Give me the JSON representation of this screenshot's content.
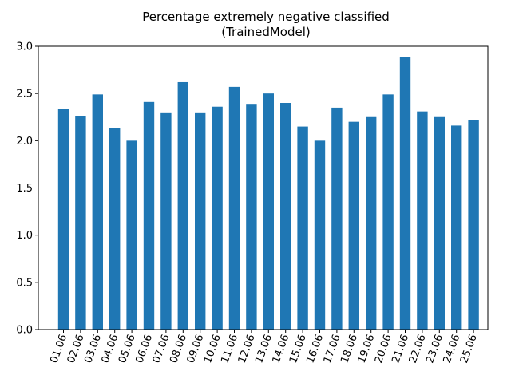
{
  "chart_data": {
    "type": "bar",
    "title": [
      "Percentage extremely negative classified",
      "(TrainedModel)"
    ],
    "xlabel": "",
    "ylabel": "",
    "ylim": [
      0,
      3.0
    ],
    "yticks": [
      "0.0",
      "0.5",
      "1.0",
      "1.5",
      "2.0",
      "2.5",
      "3.0"
    ],
    "categories": [
      "01.06",
      "02.06",
      "03.06",
      "04.06",
      "05.06",
      "06.06",
      "07.06",
      "08.06",
      "09.06",
      "10.06",
      "11.06",
      "12.06",
      "13.06",
      "14.06",
      "15.06",
      "16.06",
      "17.06",
      "18.06",
      "19.06",
      "20.06",
      "21.06",
      "22.06",
      "23.06",
      "24.06",
      "25.06"
    ],
    "values": [
      2.34,
      2.26,
      2.49,
      2.13,
      2.0,
      2.41,
      2.3,
      2.62,
      2.3,
      2.36,
      2.57,
      2.39,
      2.5,
      2.4,
      2.15,
      2.0,
      2.35,
      2.2,
      2.25,
      2.49,
      2.89,
      2.31,
      2.25,
      2.16,
      2.22
    ],
    "color": "#1f77b4",
    "grid": false,
    "legend": "none"
  }
}
